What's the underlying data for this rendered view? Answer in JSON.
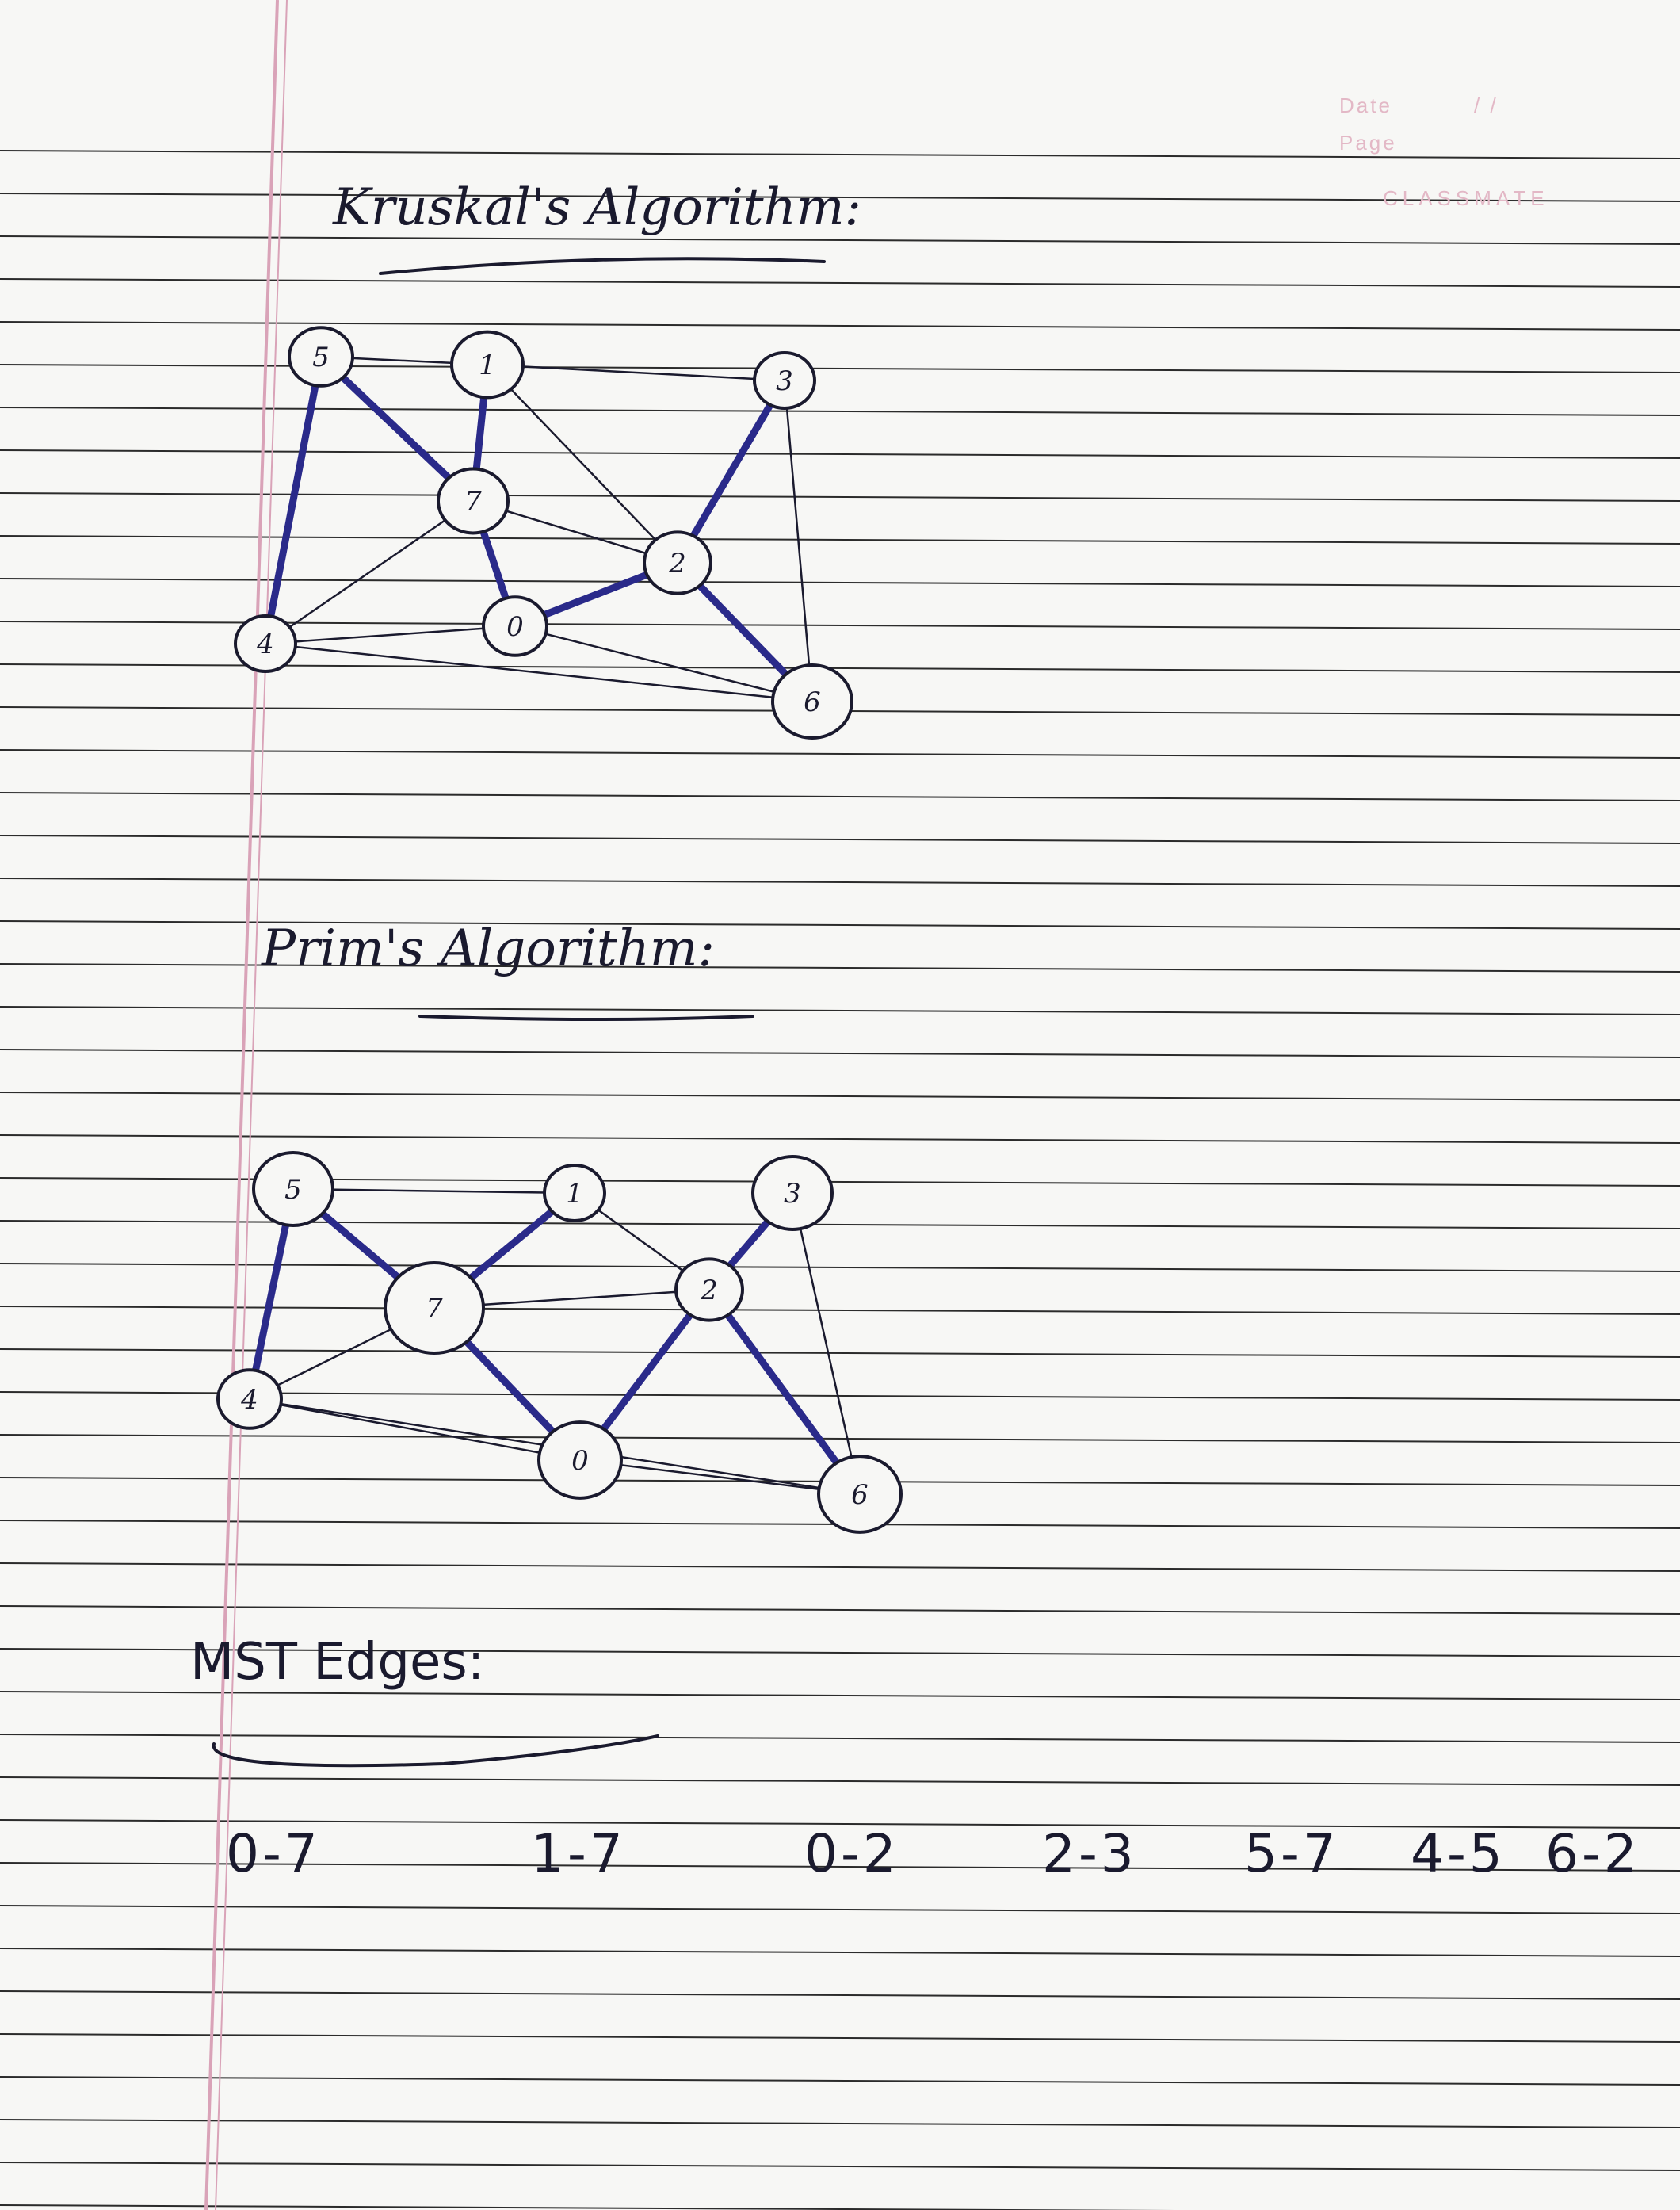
{
  "brand": {
    "date_label": "Date",
    "date_value": "/ /",
    "page_label": "Page",
    "name": "CLASSMATE"
  },
  "sections": {
    "kruskal_title": "Kruskal's Algorithm:",
    "prim_title": "Prim's Algorithm:",
    "mst_title": "MST Edges:"
  },
  "kruskal_graph": {
    "node_labels": [
      "0",
      "1",
      "2",
      "3",
      "4",
      "5",
      "6",
      "7"
    ]
  },
  "prim_graph": {
    "node_labels": [
      "0",
      "1",
      "2",
      "3",
      "4",
      "5",
      "6",
      "7"
    ]
  },
  "mst_edges": [
    "0-7",
    "1-7",
    "0-2",
    "2-3",
    "5-7",
    "4-5",
    "6-2"
  ],
  "colors": {
    "ink": "#1a1a2e",
    "blue_ink": "#2a2a8a",
    "ruled_line": "#2b2b2b",
    "margin_line": "#d9a3b8",
    "paper": "#f7f7f5"
  }
}
